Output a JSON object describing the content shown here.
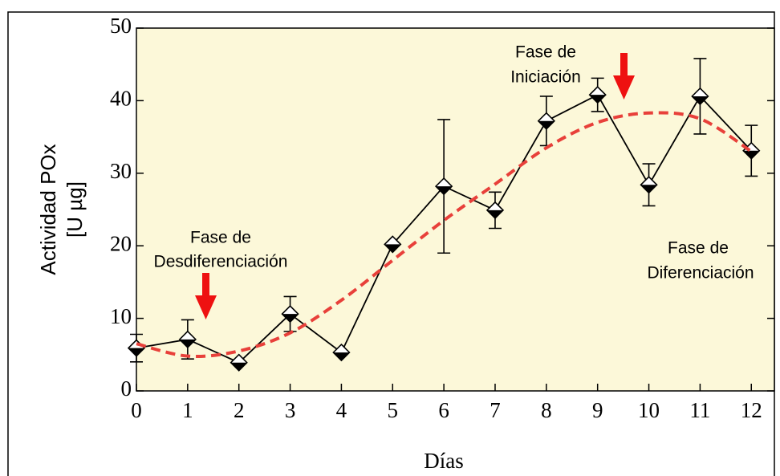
{
  "chart_data": {
    "type": "line",
    "xlabel": "Días",
    "ylabel": [
      "Actividad POx",
      "[U µg]"
    ],
    "x": [
      0,
      1,
      2,
      3,
      4,
      5,
      6,
      7,
      8,
      9,
      10,
      11,
      12
    ],
    "xlim": [
      0,
      12.45
    ],
    "xticks": [
      0,
      1,
      2,
      3,
      4,
      5,
      6,
      7,
      8,
      9,
      10,
      11,
      12
    ],
    "ylim": [
      0,
      50
    ],
    "yticks": [
      0,
      10,
      20,
      30,
      40,
      50
    ],
    "series": [
      {
        "color": "#000000",
        "values": [
          5.9,
          7.1,
          3.9,
          10.6,
          5.3,
          20.2,
          28.2,
          24.9,
          37.2,
          40.8,
          28.4,
          40.6,
          33.1
        ],
        "error": [
          1.9,
          2.7,
          0,
          2.4,
          0,
          0,
          9.2,
          2.5,
          3.4,
          2.3,
          2.9,
          5.2,
          3.5
        ]
      },
      {
        "color": "#e8403a",
        "style": "dashed",
        "values": [
          6.5,
          4.8,
          5.5,
          8,
          12.5,
          18,
          23.5,
          28.5,
          33.5,
          37,
          38.3,
          37.5,
          33
        ]
      }
    ],
    "annotations": [
      {
        "lines": [
          "Fase de",
          "Desdiferenciación"
        ]
      },
      {
        "lines": [
          "Fase de",
          "Iniciación"
        ]
      },
      {
        "lines": [
          "Fase de",
          "Diferenciación"
        ]
      }
    ]
  }
}
